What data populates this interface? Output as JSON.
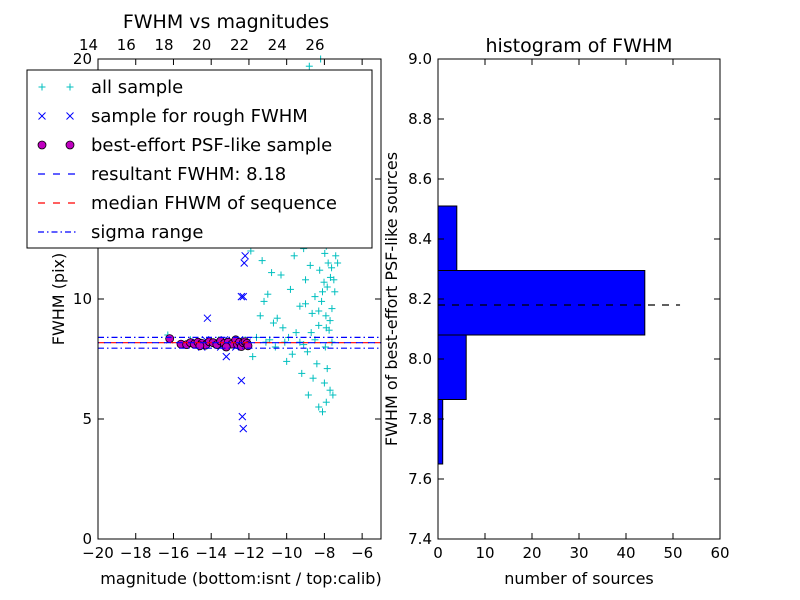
{
  "chart_data": [
    {
      "type": "scatter",
      "title": "FWHM vs magnitudes",
      "xlabel": "magnitude (bottom:isnt / top:calib)",
      "ylabel": "FWHM (pix)",
      "xlim": [
        -20,
        -5
      ],
      "ylim": [
        0,
        20
      ],
      "xticks": [
        -20,
        -18,
        -16,
        -14,
        -12,
        -10,
        -8,
        -6
      ],
      "xtick_labels": [
        "−20",
        "−18",
        "−16",
        "−14",
        "−12",
        "−10",
        "−8",
        "−6"
      ],
      "yticks": [
        0,
        5,
        10,
        15,
        20
      ],
      "ytick_labels": [
        "0",
        "5",
        "10",
        "15",
        "20"
      ],
      "top_axis": {
        "offset": 34.5,
        "ticks": [
          14,
          16,
          18,
          20,
          22,
          24,
          26
        ],
        "tick_labels": [
          "14",
          "16",
          "18",
          "20",
          "22",
          "24",
          "26"
        ]
      },
      "legend_position": "top-left",
      "legend": [
        {
          "label": "all sample",
          "marker": "plus",
          "color": "#00bfbf"
        },
        {
          "label": "sample for rough FWHM",
          "marker": "x",
          "color": "#0000ff"
        },
        {
          "label": "best-effort PSF-like sample",
          "marker": "circle",
          "color": "#bf00bf"
        },
        {
          "label": "resultant FWHM: 8.18",
          "marker": "dashed-line",
          "color": "#0000ff"
        },
        {
          "label": "median FHWM of sequence",
          "marker": "dashed-line",
          "color": "#ff0000"
        },
        {
          "label": "sigma range",
          "marker": "dashdot-line",
          "color": "#0000ff"
        }
      ],
      "resultant_fwhm": 8.18,
      "median_fwhm": 8.18,
      "sigma_range": [
        7.95,
        8.4
      ],
      "series": [
        {
          "name": "all sample",
          "marker": "plus",
          "color": "#00bfbf",
          "points": [
            [
              -16.3,
              8.5
            ],
            [
              -12.2,
              8.3
            ],
            [
              -11.6,
              8.4
            ],
            [
              -11.4,
              9.3
            ],
            [
              -11.8,
              7.6
            ],
            [
              -11.5,
              12.6
            ],
            [
              -11.3,
              11.6
            ],
            [
              -11.0,
              10.2
            ],
            [
              -10.8,
              11.1
            ],
            [
              -10.5,
              9.2
            ],
            [
              -10.6,
              8.0
            ],
            [
              -10.2,
              8.8
            ],
            [
              -10.0,
              7.4
            ],
            [
              -10.4,
              12.5
            ],
            [
              -9.8,
              10.4
            ],
            [
              -9.6,
              11.8
            ],
            [
              -9.5,
              8.6
            ],
            [
              -9.4,
              13.3
            ],
            [
              -9.3,
              9.7
            ],
            [
              -9.2,
              6.9
            ],
            [
              -9.1,
              12.1
            ],
            [
              -9.0,
              10.8
            ],
            [
              -8.95,
              14.6
            ],
            [
              -8.9,
              7.8
            ],
            [
              -8.8,
              16.3
            ],
            [
              -8.75,
              11.4
            ],
            [
              -8.7,
              12.9
            ],
            [
              -8.65,
              9.4
            ],
            [
              -8.6,
              13.7
            ],
            [
              -8.55,
              15.4
            ],
            [
              -8.5,
              10.1
            ],
            [
              -8.45,
              17.6
            ],
            [
              -8.4,
              12.3
            ],
            [
              -8.35,
              14.2
            ],
            [
              -8.3,
              8.9
            ],
            [
              -8.28,
              18.8
            ],
            [
              -8.25,
              11.2
            ],
            [
              -8.2,
              13.1
            ],
            [
              -8.18,
              16.8
            ],
            [
              -8.15,
              9.9
            ],
            [
              -8.12,
              12.6
            ],
            [
              -8.1,
              19.4
            ],
            [
              -8.05,
              14.9
            ],
            [
              -8.02,
              10.7
            ],
            [
              -8.0,
              13.6
            ],
            [
              -7.98,
              11.9
            ],
            [
              -7.95,
              15.8
            ],
            [
              -7.92,
              9.3
            ],
            [
              -7.9,
              12.2
            ],
            [
              -7.88,
              17.2
            ],
            [
              -7.85,
              10.5
            ],
            [
              -7.82,
              14.1
            ],
            [
              -7.8,
              11.5
            ],
            [
              -7.78,
              13.2
            ],
            [
              -7.75,
              8.7
            ],
            [
              -7.72,
              12.8
            ],
            [
              -7.7,
              15.1
            ],
            [
              -7.68,
              10.9
            ],
            [
              -7.65,
              13.9
            ],
            [
              -7.62,
              11.3
            ],
            [
              -7.6,
              9.6
            ],
            [
              -7.55,
              12.4
            ],
            [
              -7.5,
              14.5
            ],
            [
              -7.45,
              10.3
            ],
            [
              -7.4,
              11.8
            ],
            [
              -8.85,
              6.0
            ],
            [
              -8.3,
              5.5
            ],
            [
              -8.1,
              5.3
            ],
            [
              -7.9,
              5.7
            ],
            [
              -7.7,
              6.2
            ],
            [
              -7.55,
              6.0
            ],
            [
              -8.6,
              6.7
            ],
            [
              -8.0,
              6.5
            ],
            [
              -7.85,
              7.1
            ],
            [
              -8.4,
              7.3
            ],
            [
              -9.7,
              7.7
            ],
            [
              -9.1,
              8.1
            ],
            [
              -8.5,
              8.3
            ],
            [
              -7.95,
              8.0
            ],
            [
              -7.6,
              8.2
            ],
            [
              -11.7,
              18.5
            ],
            [
              -11.9,
              12.0
            ],
            [
              -10.9,
              13.6
            ],
            [
              -9.9,
              14.9
            ],
            [
              -9.6,
              16.4
            ],
            [
              -9.2,
              18.9
            ],
            [
              -8.8,
              19.7
            ],
            [
              -8.4,
              19.3
            ],
            [
              -8.2,
              20.0
            ],
            [
              -10.3,
              11.0
            ],
            [
              -11.2,
              9.9
            ],
            [
              -10.7,
              9.0
            ],
            [
              -9.0,
              9.8
            ],
            [
              -8.7,
              8.6
            ],
            [
              -8.3,
              9.5
            ],
            [
              -8.1,
              10.3
            ],
            [
              -7.9,
              8.8
            ],
            [
              -7.7,
              9.1
            ],
            [
              -7.5,
              10.8
            ],
            [
              -7.3,
              11.5
            ],
            [
              -12.9,
              8.2
            ],
            [
              -13.6,
              8.3
            ],
            [
              -14.5,
              8.2
            ],
            [
              -15.1,
              8.3
            ],
            [
              -12.4,
              8.2
            ],
            [
              -11.1,
              8.2
            ],
            [
              -10.9,
              8.3
            ],
            [
              -10.1,
              8.2
            ],
            [
              -9.9,
              8.4
            ],
            [
              -9.3,
              8.2
            ]
          ]
        },
        {
          "name": "sample for rough FWHM",
          "marker": "x",
          "color": "#0000ff",
          "points": [
            [
              -16.2,
              8.3
            ],
            [
              -15.5,
              8.1
            ],
            [
              -14.8,
              8.2
            ],
            [
              -14.5,
              8.0
            ],
            [
              -14.3,
              8.3
            ],
            [
              -14.0,
              8.1
            ],
            [
              -13.8,
              8.2
            ],
            [
              -13.5,
              8.0
            ],
            [
              -13.3,
              8.3
            ],
            [
              -13.1,
              8.1
            ],
            [
              -12.9,
              8.2
            ],
            [
              -12.7,
              8.0
            ],
            [
              -12.5,
              8.3
            ],
            [
              -12.3,
              8.1
            ],
            [
              -12.1,
              8.2
            ],
            [
              -14.2,
              9.2
            ],
            [
              -13.2,
              7.6
            ],
            [
              -12.3,
              12.4
            ],
            [
              -12.2,
              11.8
            ],
            [
              -12.25,
              11.5
            ],
            [
              -12.4,
              10.1
            ],
            [
              -12.3,
              10.1
            ],
            [
              -12.4,
              6.6
            ],
            [
              -12.35,
              5.1
            ],
            [
              -12.3,
              4.6
            ]
          ]
        },
        {
          "name": "best-effort PSF-like sample",
          "marker": "circle",
          "color": "#bf00bf",
          "points": [
            [
              -16.2,
              8.35
            ],
            [
              -15.6,
              8.12
            ],
            [
              -15.3,
              8.1
            ],
            [
              -15.1,
              8.18
            ],
            [
              -14.9,
              8.12
            ],
            [
              -14.7,
              8.2
            ],
            [
              -14.5,
              8.15
            ],
            [
              -14.3,
              8.08
            ],
            [
              -14.1,
              8.22
            ],
            [
              -13.9,
              8.18
            ],
            [
              -13.7,
              8.1
            ],
            [
              -13.5,
              8.25
            ],
            [
              -13.3,
              8.15
            ],
            [
              -13.1,
              8.2
            ],
            [
              -12.9,
              8.12
            ],
            [
              -12.7,
              8.3
            ],
            [
              -12.6,
              8.1
            ],
            [
              -12.5,
              8.2
            ],
            [
              -12.4,
              8.02
            ],
            [
              -12.3,
              8.18
            ],
            [
              -12.2,
              8.22
            ],
            [
              -12.1,
              8.15
            ],
            [
              -12.05,
              8.05
            ],
            [
              -13.2,
              8.0
            ],
            [
              -14.6,
              8.05
            ]
          ]
        }
      ]
    },
    {
      "type": "bar",
      "orientation": "horizontal",
      "title": "histogram of FWHM",
      "xlabel": "number of sources",
      "ylabel": "FWHM of best-effort PSF-like sources",
      "xlim": [
        0,
        60
      ],
      "ylim": [
        7.4,
        9.0
      ],
      "xticks": [
        0,
        10,
        20,
        30,
        40,
        50,
        60
      ],
      "xtick_labels": [
        "0",
        "10",
        "20",
        "30",
        "40",
        "50",
        "60"
      ],
      "yticks": [
        7.4,
        7.6,
        7.8,
        8.0,
        8.2,
        8.4,
        8.6,
        8.8,
        9.0
      ],
      "ytick_labels": [
        "7.4",
        "7.6",
        "7.8",
        "8.0",
        "8.2",
        "8.4",
        "8.6",
        "8.8",
        "9.0"
      ],
      "color": "#0000ff",
      "bins": [
        {
          "from": 7.65,
          "to": 7.865,
          "count": 1
        },
        {
          "from": 7.865,
          "to": 8.08,
          "count": 6
        },
        {
          "from": 8.08,
          "to": 8.295,
          "count": 44
        },
        {
          "from": 8.295,
          "to": 8.51,
          "count": 4
        }
      ],
      "reference_line": {
        "value": 8.18,
        "style": "dashed",
        "color": "#000000",
        "x_range": [
          0,
          51.5
        ]
      }
    }
  ]
}
